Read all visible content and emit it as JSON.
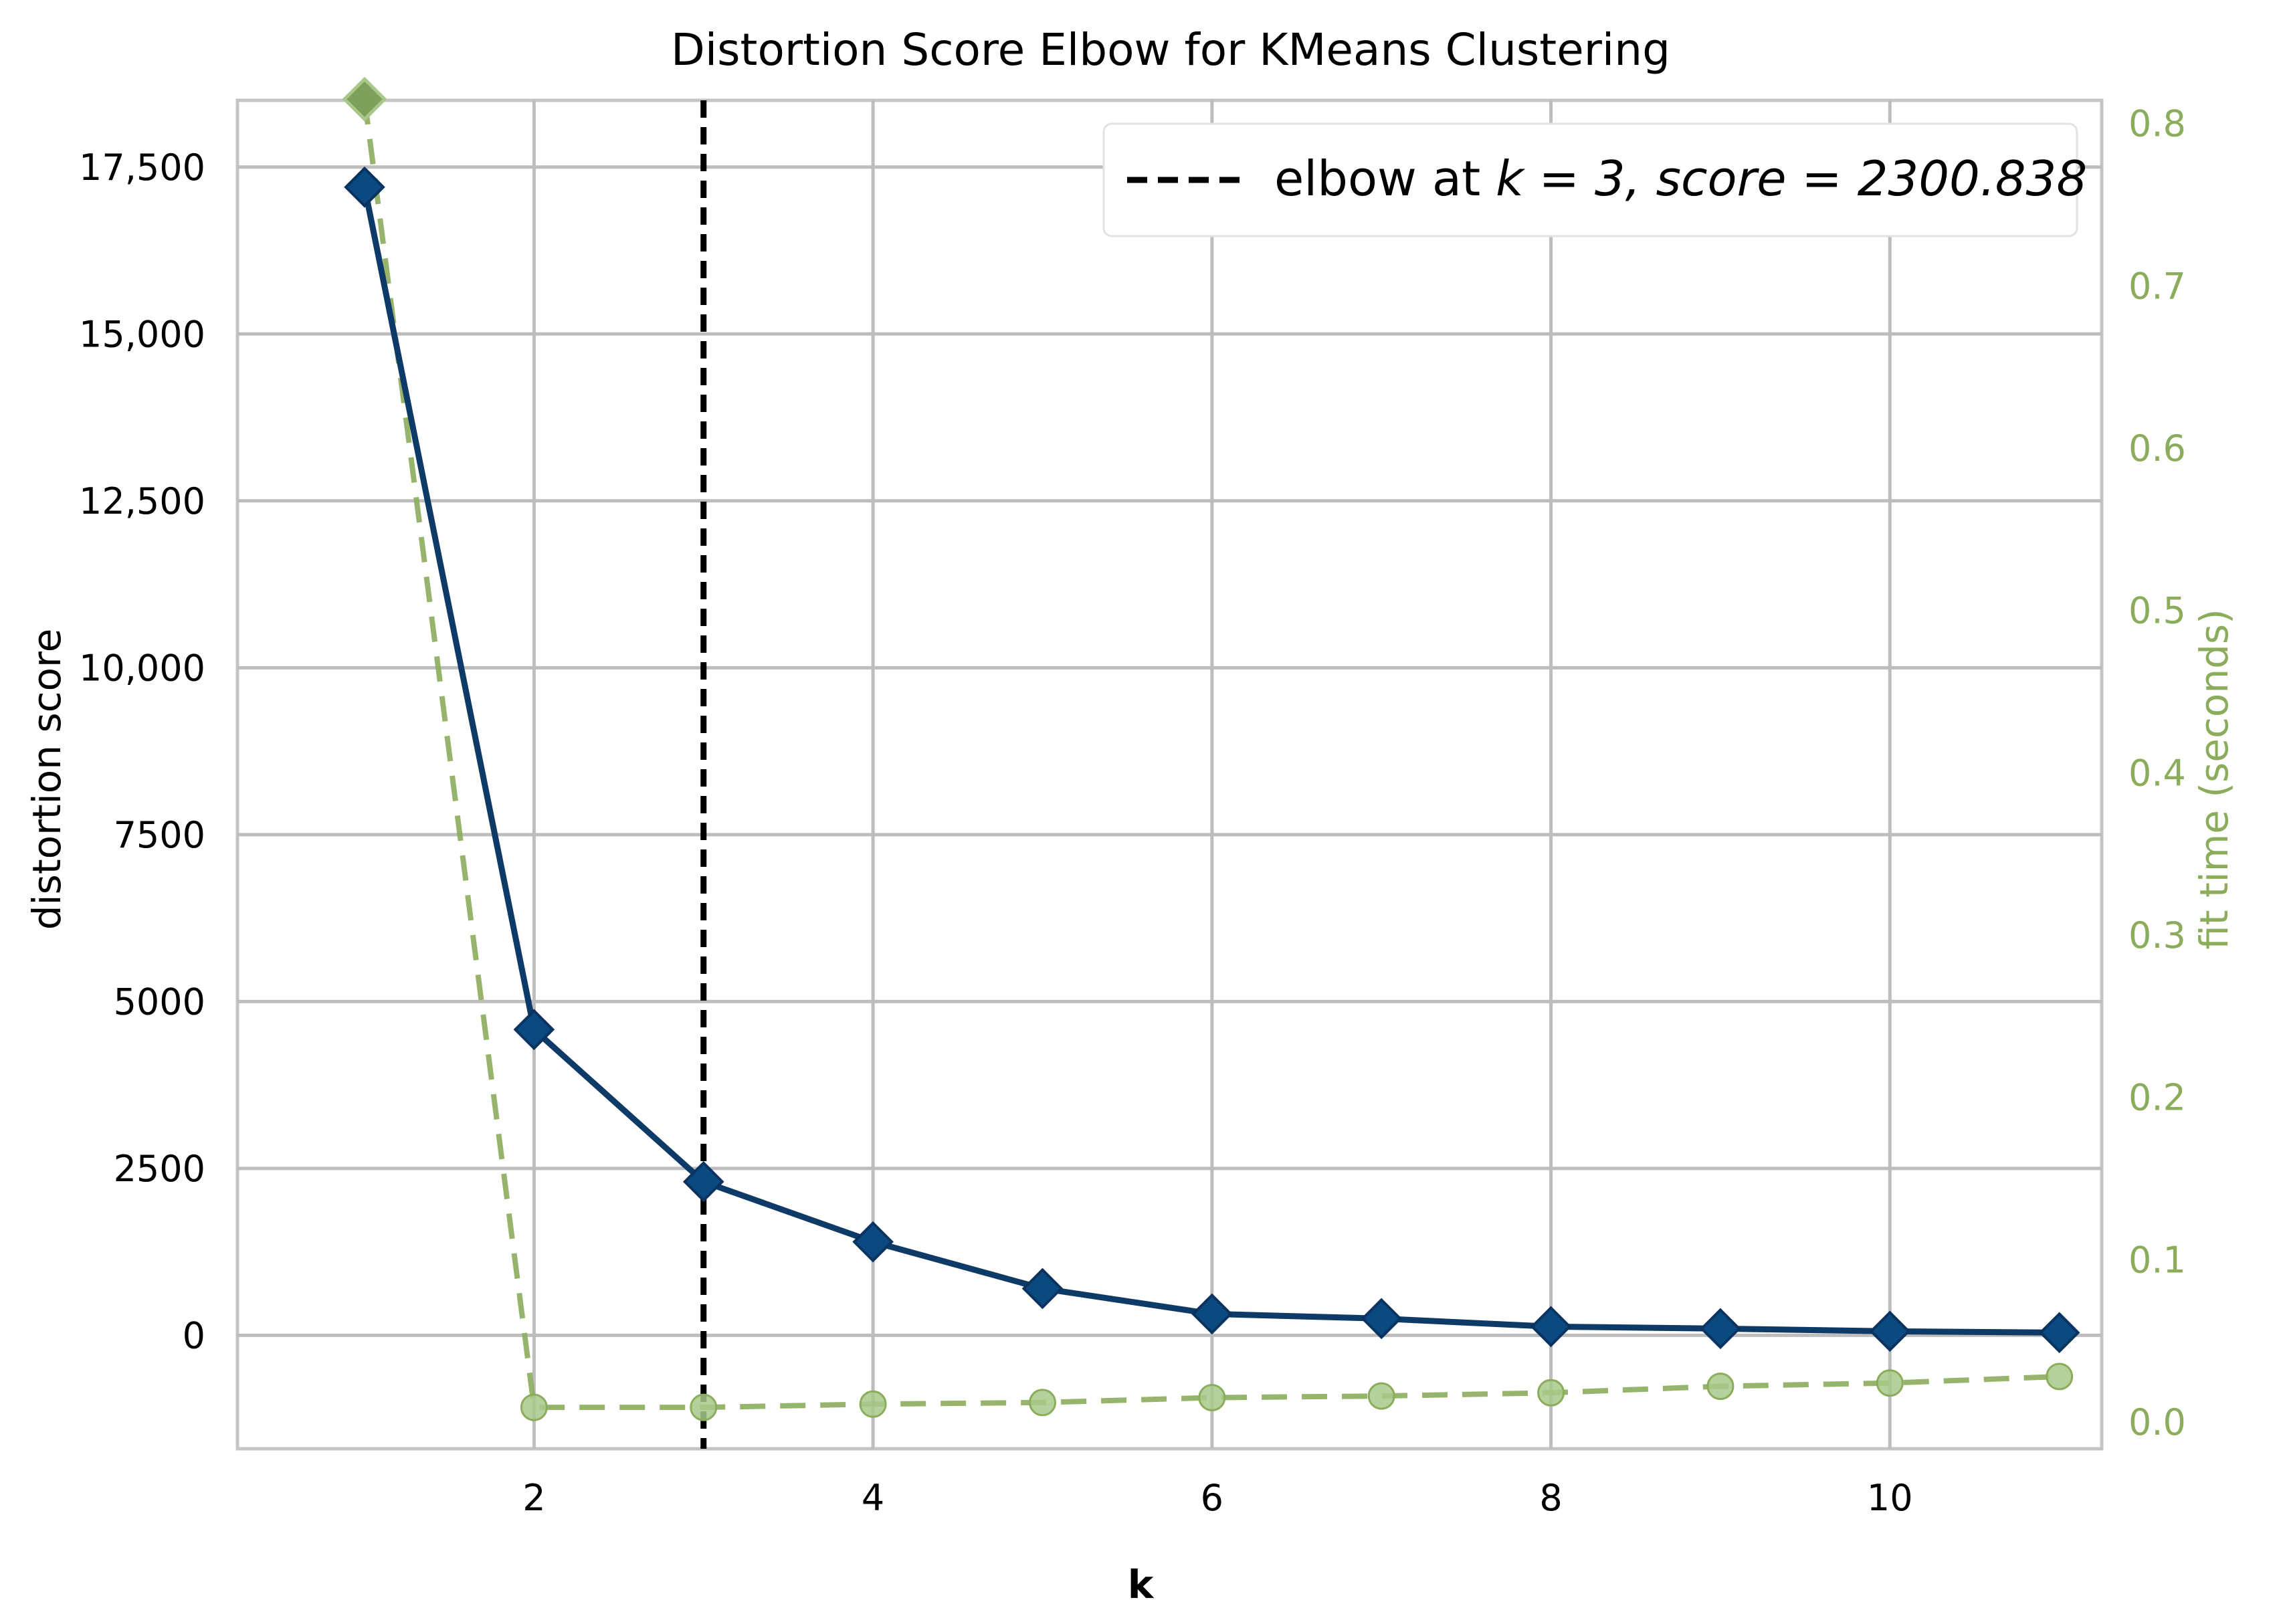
{
  "chart_data": {
    "type": "line",
    "title": "Distortion Score Elbow for KMeans Clustering",
    "xlabel": "k",
    "ylabel": "distortion score",
    "y2label": "fit time (seconds)",
    "xlim": [
      0.25,
      11.25
    ],
    "ylim": [
      -1700,
      18500
    ],
    "y2lim": [
      -0.0165,
      0.8143
    ],
    "x_ticks": [
      2,
      4,
      6,
      8,
      10
    ],
    "x_tick_labels": [
      "2",
      "4",
      "6",
      "8",
      "10"
    ],
    "y_ticks": [
      0,
      2500,
      5000,
      7500,
      10000,
      12500,
      15000,
      17500
    ],
    "y_tick_labels": [
      "0",
      "2500",
      "5000",
      "7500",
      "10,000",
      "12,500",
      "15,000",
      "17,500"
    ],
    "y2_ticks": [
      0.0,
      0.1,
      0.2,
      0.3,
      0.4,
      0.5,
      0.6,
      0.7,
      0.8
    ],
    "y2_tick_labels": [
      "0.0",
      "0.1",
      "0.2",
      "0.3",
      "0.4",
      "0.5",
      "0.6",
      "0.7",
      "0.8"
    ],
    "grid": true,
    "legend_position": "top-right",
    "series": [
      {
        "key": "distortion",
        "axis": "left",
        "style": "solid",
        "marker": "diamond",
        "color": "#0d3a66",
        "x": [
          1,
          2,
          3,
          4,
          5,
          6,
          7,
          8,
          9,
          10,
          11
        ],
        "values": [
          17200,
          4580,
          2300.838,
          1400,
          700,
          320,
          250,
          130,
          100,
          60,
          40
        ]
      },
      {
        "key": "fit_time",
        "axis": "right",
        "style": "dashed",
        "marker": "circle",
        "color": "#8bac5b",
        "x": [
          1,
          2,
          3,
          4,
          5,
          6,
          7,
          8,
          9,
          10,
          11
        ],
        "values": [
          0.815,
          0.009,
          0.009,
          0.011,
          0.012,
          0.015,
          0.016,
          0.018,
          0.022,
          0.024,
          0.028
        ]
      }
    ],
    "elbow": {
      "k": 3,
      "score": 2300.838,
      "legend_prefix": "elbow at ",
      "legend_math": "k = 3, score = 2300.838",
      "color": "#000000"
    }
  }
}
